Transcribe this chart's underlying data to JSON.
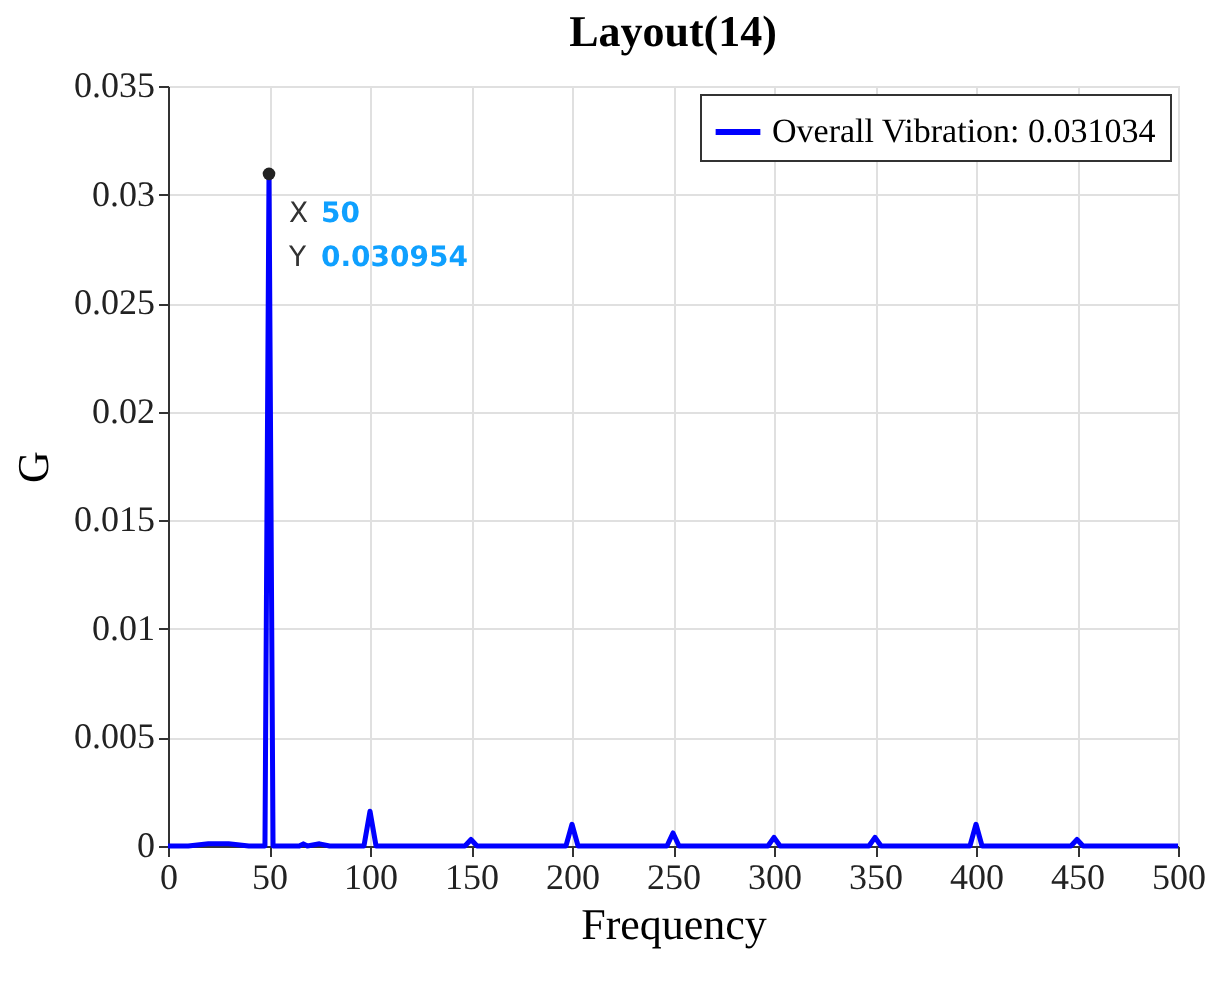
{
  "chart_data": {
    "type": "line",
    "title": "Layout(14)",
    "xlabel": "Frequency",
    "ylabel": "G",
    "x": [
      0,
      10,
      20,
      30,
      40,
      47,
      48,
      50,
      52,
      53,
      60,
      65,
      67,
      69,
      75,
      80,
      97,
      100,
      103,
      147,
      150,
      153,
      197,
      200,
      203,
      247,
      250,
      253,
      297,
      300,
      303,
      347,
      350,
      353,
      397,
      400,
      403,
      447,
      450,
      453,
      500
    ],
    "series": [
      {
        "name": "Overall Vibration: 0.031034",
        "color": "#0000ff",
        "values": [
          0,
          0,
          0.0001,
          0.0001,
          0,
          0,
          0,
          0.030954,
          0,
          0,
          0,
          0,
          0.0001,
          0,
          0.0001,
          0,
          0,
          0.0016,
          0,
          0,
          0.0003,
          0,
          0,
          0.001,
          0,
          0,
          0.0006,
          0,
          0,
          0.0004,
          0,
          0,
          0.0004,
          0,
          0,
          0.001,
          0,
          0,
          0.0003,
          0,
          0
        ]
      }
    ],
    "xlim": [
      0,
      500
    ],
    "xticks": [
      0,
      50,
      100,
      150,
      200,
      250,
      300,
      350,
      400,
      450,
      500
    ],
    "ylim": [
      0,
      0.035
    ],
    "yticks": [
      0,
      0.005,
      0.01,
      0.015,
      0.02,
      0.025,
      0.03,
      0.035
    ],
    "grid": true,
    "legend": "top right",
    "line_style": "solid",
    "marker": "none",
    "annotations": [
      {
        "text": "X 50\nY 0.030954",
        "x": 50,
        "y": 0.030954
      }
    ]
  }
}
